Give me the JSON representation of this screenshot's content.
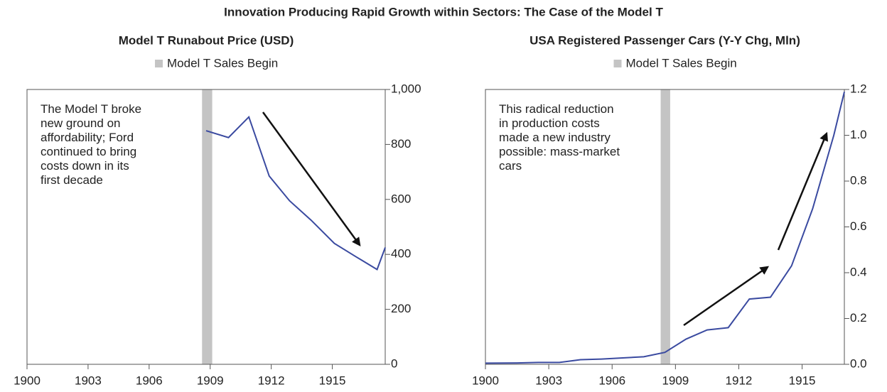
{
  "title": "Innovation Producing Rapid Growth within Sectors: The Case of the Model T",
  "chart_data": [
    {
      "type": "line",
      "title": "Model T Runabout Price (USD)",
      "shade": {
        "name": "Model T Sales Begin",
        "color": "#c4c4c4",
        "x": [
          1908.6,
          1909.1
        ]
      },
      "annotation": [
        "The Model T broke",
        "new ground on",
        "affordability; Ford",
        "continued to bring",
        "costs down in its",
        "first decade"
      ],
      "x": [
        1908.8,
        1909.9,
        1910.9,
        1911.9,
        1912.9,
        1913.95,
        1915.1,
        1916.15,
        1917.2,
        1917.6
      ],
      "values": [
        850,
        825,
        900,
        685,
        595,
        525,
        440,
        392,
        345,
        425
      ],
      "color": "#3a4aa0",
      "xlim": [
        1900,
        1917.6
      ],
      "xticks": [
        1900,
        1903,
        1906,
        1909,
        1912,
        1915
      ],
      "ylim": [
        0,
        1000
      ],
      "yticks": [
        0,
        200,
        400,
        600,
        800,
        {
          "value": 1000,
          "label": "1,000"
        }
      ]
    },
    {
      "type": "line",
      "title": "USA Registered Passenger Cars (Y-Y Chg, Mln)",
      "shade": {
        "name": "Model T Sales Begin",
        "color": "#c4c4c4",
        "x": [
          1908.3,
          1908.75
        ]
      },
      "annotation": [
        "This radical reduction",
        "in production costs",
        "made a new industry",
        "possible: mass-market",
        "cars"
      ],
      "x": [
        1900,
        1901.5,
        1902.5,
        1903.5,
        1904.5,
        1905.5,
        1906.5,
        1907.5,
        1908.5,
        1909.5,
        1910.5,
        1911.5,
        1912.5,
        1913.5,
        1914.5,
        1915.5,
        1916.5,
        1917
      ],
      "values": [
        0.005,
        0.006,
        0.008,
        0.008,
        0.02,
        0.023,
        0.028,
        0.033,
        0.052,
        0.11,
        0.15,
        0.16,
        0.285,
        0.293,
        0.43,
        0.68,
        1.0,
        1.19
      ],
      "color": "#3a4aa0",
      "xlim": [
        1900,
        1917
      ],
      "xticks": [
        1900,
        1903,
        1906,
        1909,
        1912,
        1915
      ],
      "ylim": [
        0,
        1.2
      ],
      "yticks": [
        {
          "value": 0,
          "label": "0.0"
        },
        0.2,
        0.4,
        0.6,
        0.8,
        {
          "value": 1,
          "label": "1.0"
        },
        1.2
      ]
    }
  ]
}
